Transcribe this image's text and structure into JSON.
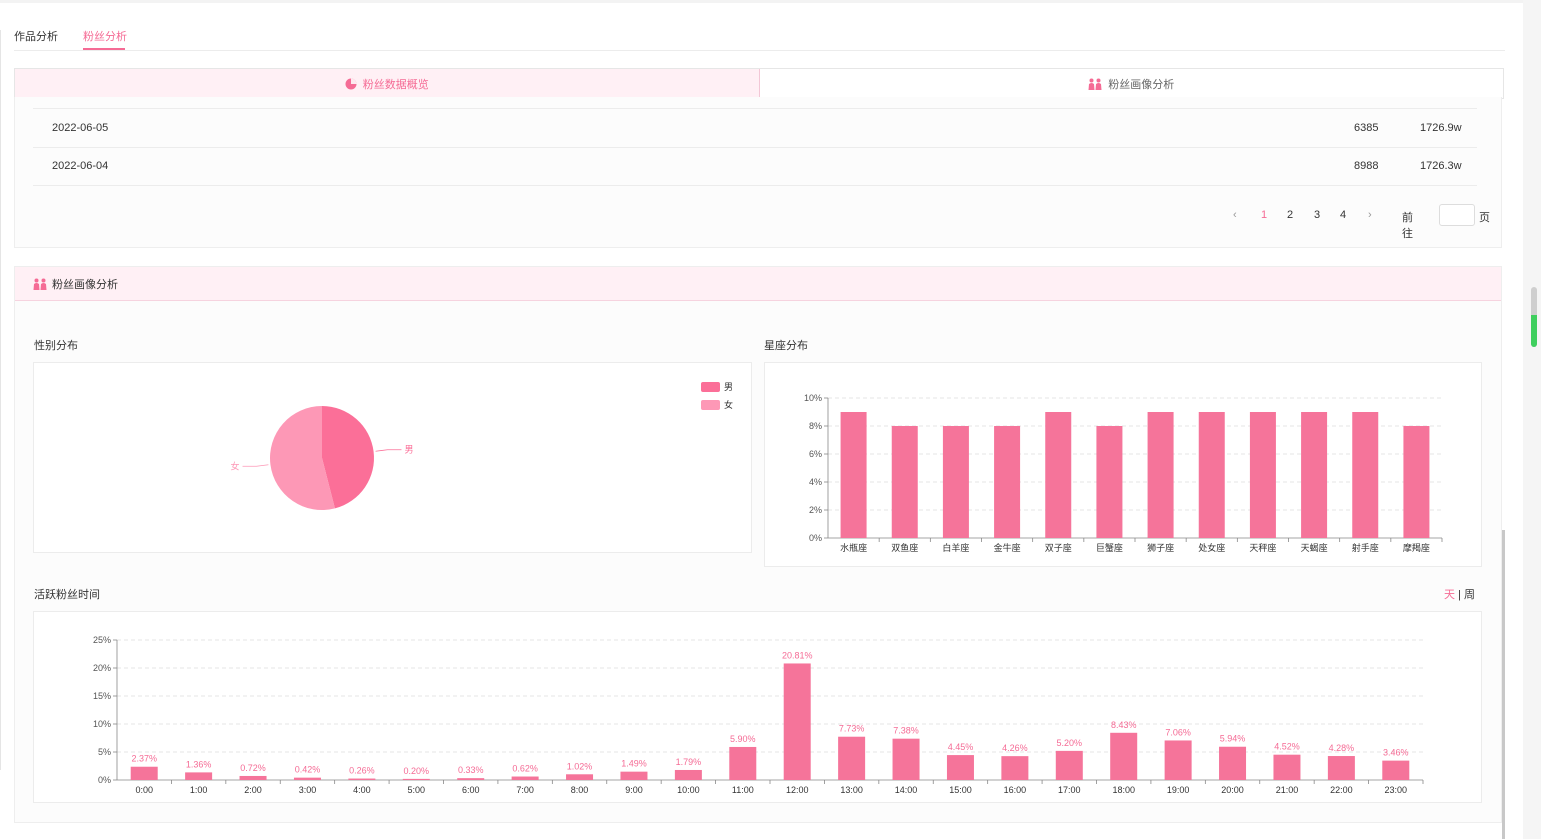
{
  "tabs": [
    {
      "label": "作品分析"
    },
    {
      "label": "粉丝分析"
    }
  ],
  "subtabs": [
    {
      "label": "粉丝数据概览"
    },
    {
      "label": "粉丝画像分析"
    }
  ],
  "table": {
    "rows": [
      {
        "date": "2022-06-05",
        "increase": "6385",
        "total": "1726.9w"
      },
      {
        "date": "2022-06-04",
        "increase": "8988",
        "total": "1726.3w"
      }
    ]
  },
  "pagination": {
    "pages": [
      "1",
      "2",
      "3",
      "4"
    ],
    "current": "1",
    "goto_label": "前往",
    "page_suffix": "页"
  },
  "portrait": {
    "title": "粉丝画像分析",
    "gender_title": "性别分布",
    "constellation_title": "星座分布",
    "active_title": "活跃粉丝时间",
    "toggle_day": "天",
    "toggle_sep": "|",
    "toggle_week": "周"
  },
  "colors": {
    "accent": "#f56b95",
    "bar": "#f5749a",
    "male": "#fb6f98",
    "female": "#fd98b6"
  },
  "chart_data": [
    {
      "type": "pie",
      "title": "性别分布",
      "labels": [
        "男",
        "女"
      ],
      "values": [
        46,
        54
      ],
      "legend": "top-right"
    },
    {
      "type": "bar",
      "title": "星座分布",
      "categories": [
        "水瓶座",
        "双鱼座",
        "白羊座",
        "金牛座",
        "双子座",
        "巨蟹座",
        "狮子座",
        "处女座",
        "天秤座",
        "天蝎座",
        "射手座",
        "摩羯座"
      ],
      "values": [
        9,
        8,
        8,
        8,
        9,
        8,
        9,
        9,
        9,
        9,
        9,
        8
      ],
      "ylim": [
        0,
        10
      ],
      "yticks": [
        "0%",
        "2%",
        "4%",
        "6%",
        "8%",
        "10%"
      ],
      "grid": true
    },
    {
      "type": "bar",
      "title": "活跃粉丝时间",
      "categories": [
        "0:00",
        "1:00",
        "2:00",
        "3:00",
        "4:00",
        "5:00",
        "6:00",
        "7:00",
        "8:00",
        "9:00",
        "10:00",
        "11:00",
        "12:00",
        "13:00",
        "14:00",
        "15:00",
        "16:00",
        "17:00",
        "18:00",
        "19:00",
        "20:00",
        "21:00",
        "22:00",
        "23:00"
      ],
      "values": [
        2.37,
        1.36,
        0.72,
        0.42,
        0.26,
        0.2,
        0.33,
        0.62,
        1.02,
        1.49,
        1.79,
        5.9,
        20.81,
        7.73,
        7.38,
        4.45,
        4.26,
        5.2,
        8.43,
        7.06,
        5.94,
        4.52,
        4.28,
        3.46
      ],
      "labels": [
        "2.37%",
        "1.36%",
        "0.72%",
        "0.42%",
        "0.26%",
        "0.20%",
        "0.33%",
        "0.62%",
        "1.02%",
        "1.49%",
        "1.79%",
        "5.90%",
        "20.81%",
        "7.73%",
        "7.38%",
        "4.45%",
        "4.26%",
        "5.20%",
        "8.43%",
        "7.06%",
        "5.94%",
        "4.52%",
        "4.28%",
        "3.46%"
      ],
      "ylim": [
        0,
        25
      ],
      "yticks": [
        "0%",
        "5%",
        "10%",
        "15%",
        "20%",
        "25%"
      ],
      "grid": true
    }
  ]
}
